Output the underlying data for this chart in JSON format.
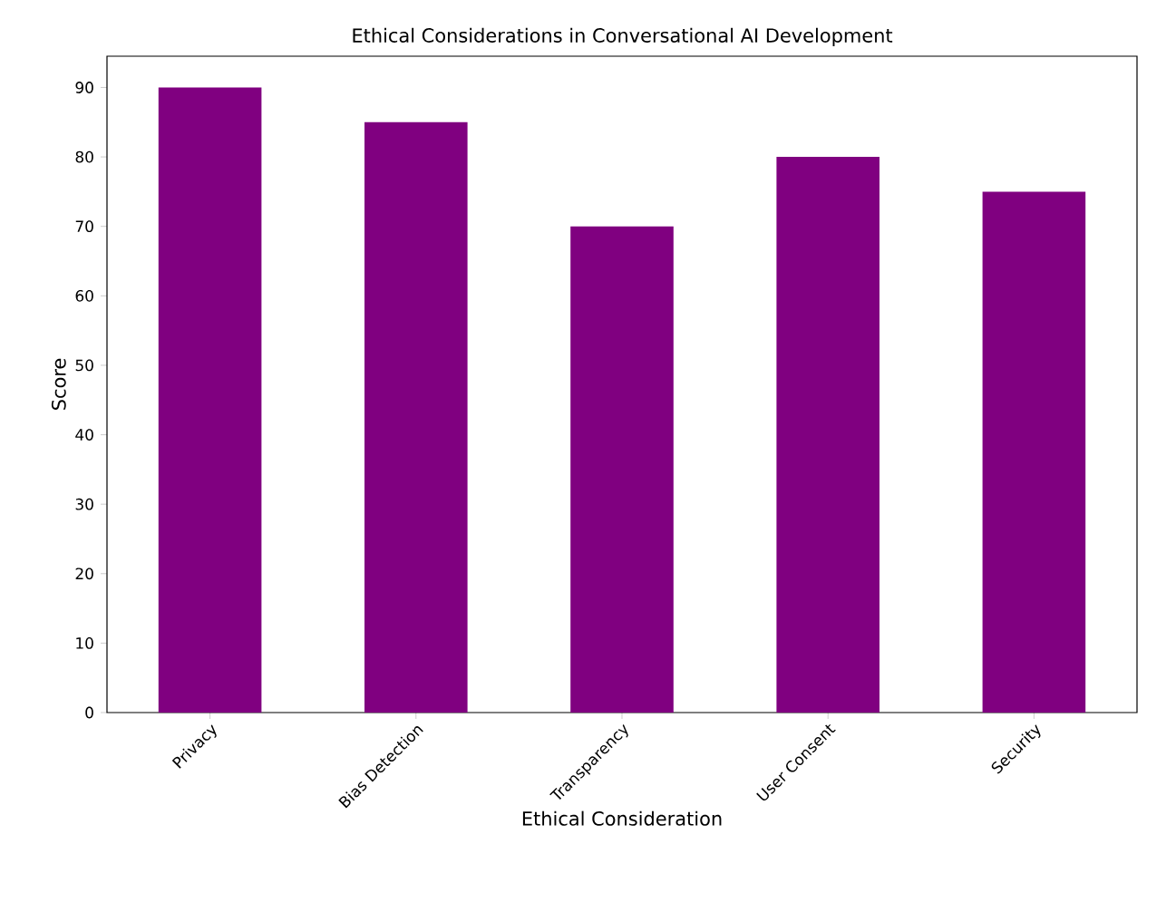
{
  "chart_data": {
    "type": "bar",
    "title": "Ethical Considerations in Conversational AI Development",
    "xlabel": "Ethical Consideration",
    "ylabel": "Score",
    "categories": [
      "Privacy",
      "Bias Detection",
      "Transparency",
      "User Consent",
      "Security"
    ],
    "values": [
      90,
      85,
      70,
      80,
      75
    ],
    "color": "#800080",
    "ylim": [
      0,
      94.5
    ],
    "yticks": [
      0,
      10,
      20,
      30,
      40,
      50,
      60,
      70,
      80,
      90
    ]
  }
}
